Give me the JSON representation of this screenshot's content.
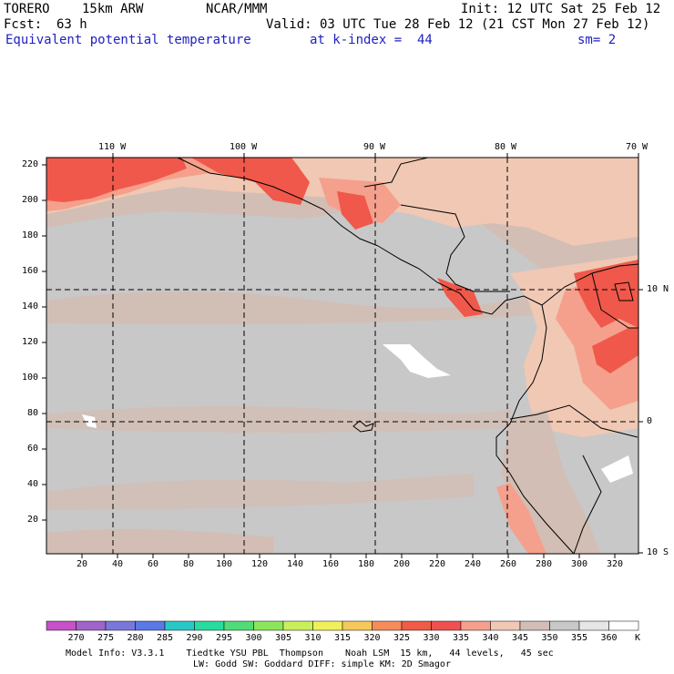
{
  "header": {
    "model": "TORERO",
    "resolution": "15km ARW",
    "center": "NCAR/MMM",
    "init": "Init: 12 UTC Sat 25 Feb 12",
    "fcst_label": "Fcst:",
    "fcst_value": "63 h",
    "valid": "Valid: 03 UTC Tue 28 Feb 12 (21 CST Mon 27 Feb 12)",
    "field": "Equivalent potential temperature",
    "level": "at k-index =  44",
    "smoothing": "sm= 2"
  },
  "map": {
    "top_lon_labels": [
      "110 W",
      "100 W",
      "90 W",
      "80 W",
      "70 W"
    ],
    "left_y_ticks": [
      "220",
      "200",
      "180",
      "160",
      "140",
      "120",
      "100",
      "80",
      "60",
      "40",
      "20"
    ],
    "bottom_x_ticks": [
      "20",
      "40",
      "60",
      "80",
      "100",
      "120",
      "140",
      "160",
      "180",
      "200",
      "220",
      "240",
      "260",
      "280",
      "300",
      "320"
    ],
    "right_lat_labels": [
      "10 N",
      "0",
      "10 S"
    ],
    "colors": {
      "land_sea_dominant": "#c8c8c8",
      "warm_tan": "#d2beb4",
      "peach": "#f0c8b4",
      "salmon": "#f5a08c",
      "red": "#f0584b",
      "white": "#ffffff",
      "grid_line": "#000000"
    }
  },
  "colorbar": {
    "labels": [
      "270",
      "275",
      "280",
      "285",
      "290",
      "295",
      "300",
      "305",
      "310",
      "315",
      "320",
      "325",
      "330",
      "335",
      "340",
      "345",
      "350",
      "355",
      "360"
    ],
    "unit": "K",
    "colors": [
      "#c850c8",
      "#a064c8",
      "#7878dc",
      "#5a78e6",
      "#28c8c8",
      "#28dca0",
      "#50dc78",
      "#8ce65a",
      "#c8f05a",
      "#f0f05a",
      "#f5c85a",
      "#f58c5a",
      "#f05a46",
      "#f05050",
      "#f5a08c",
      "#f0c8b4",
      "#d2beb4",
      "#c8c8c8",
      "#e6e6e6",
      "#ffffff"
    ]
  },
  "footer": {
    "line1": "Model Info: V3.3.1    Tiedtke YSU PBL  Thompson    Noah LSM  15 km,   44 levels,   45 sec",
    "line2": "LW: Godd SW: Goddard DIFF: simple KM: 2D Smagor"
  }
}
